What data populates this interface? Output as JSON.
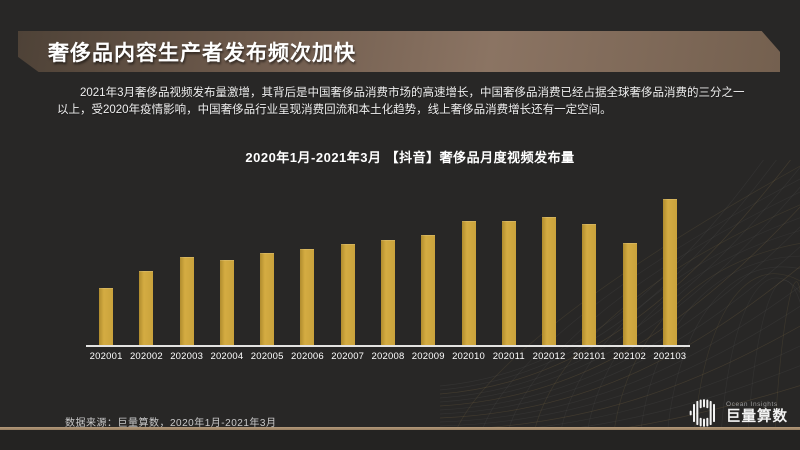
{
  "slide": {
    "header": {
      "title": "奢侈品内容生产者发布频次加快"
    },
    "intro_text": "2021年3月奢侈品视频发布量激增，其背后是中国奢侈品消费市场的高速增长，中国奢侈品消费已经占据全球奢侈品消费的三分之一以上，受2020年疫情影响，中国奢侈品行业呈现消费回流和本土化趋势，线上奢侈品消费增长还有一定空间。",
    "footer": {
      "source_text": "数据来源：巨量算数，2020年1月-2021年3月"
    },
    "logo": {
      "icon": "circular-soundwave-icon",
      "brand_en": "Ocean Insights",
      "brand_cn": "巨量算数"
    }
  },
  "chart_data": {
    "type": "bar",
    "title": "2020年1月-2021年3月 【抖音】奢侈品月度视频发布量",
    "categories": [
      "202001",
      "202002",
      "202003",
      "202004",
      "202005",
      "202006",
      "202007",
      "202008",
      "202009",
      "202010",
      "202011",
      "202012",
      "202101",
      "202102",
      "202103"
    ],
    "values": [
      39,
      51,
      60,
      58,
      63,
      66,
      69,
      72,
      75,
      85,
      85,
      88,
      83,
      70,
      100
    ],
    "value_scale": "relative index, tallest bar (202103) = 100; no numeric y-axis shown",
    "xlabel": "",
    "ylabel": "",
    "grid": false,
    "y_axis_visible": false,
    "legend": "none",
    "bar_color": "#c9a23c",
    "axis_color": "#e3e3e1",
    "label_color": "#ffffff"
  },
  "colors": {
    "background": "#282726",
    "banner_gradient_dark": "#4e4237",
    "banner_gradient_light": "#8b7463",
    "accent_gold": "#c9a23c",
    "footer_stripe": "#a78d6f",
    "text_primary": "#ffffff",
    "text_muted": "#c9c9c9"
  }
}
